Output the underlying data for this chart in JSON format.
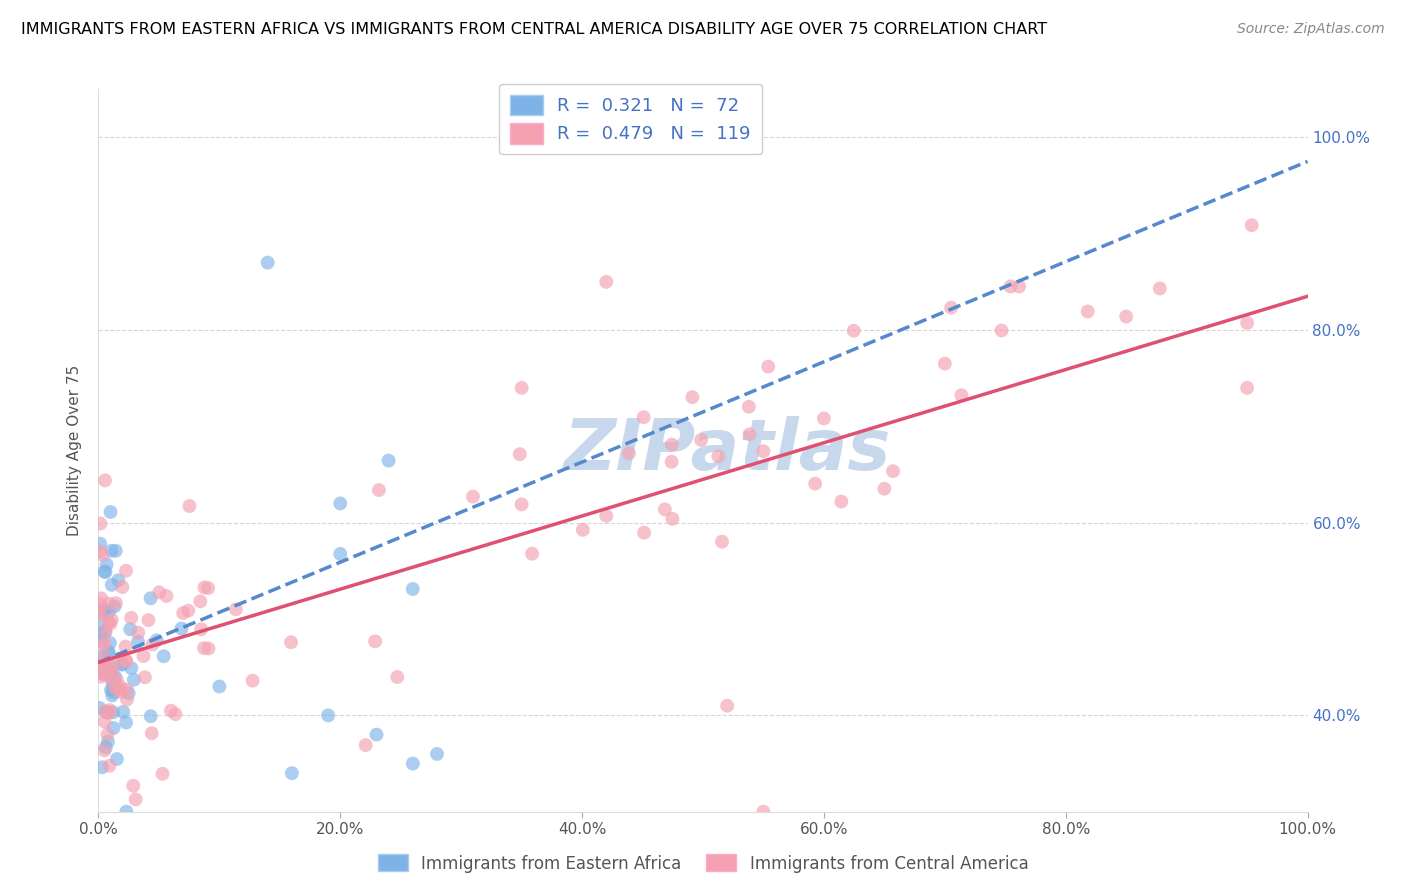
{
  "title": "IMMIGRANTS FROM EASTERN AFRICA VS IMMIGRANTS FROM CENTRAL AMERICA DISABILITY AGE OVER 75 CORRELATION CHART",
  "source": "Source: ZipAtlas.com",
  "ylabel": "Disability Age Over 75",
  "xlim": [
    0.0,
    1.0
  ],
  "ylim": [
    0.3,
    1.05
  ],
  "xtick_positions": [
    0.0,
    0.2,
    0.4,
    0.6,
    0.8,
    1.0
  ],
  "xtick_labels": [
    "0.0%",
    "20.0%",
    "40.0%",
    "60.0%",
    "80.0%",
    "100.0%"
  ],
  "ytick_positions": [
    0.4,
    0.6,
    0.8,
    1.0
  ],
  "ytick_labels": [
    "40.0%",
    "60.0%",
    "80.0%",
    "100.0%"
  ],
  "r_blue": 0.321,
  "n_blue": 72,
  "r_pink": 0.479,
  "n_pink": 119,
  "blue_color": "#7EB3E8",
  "pink_color": "#F4A0B0",
  "trend_blue_color": "#5588CC",
  "trend_pink_color": "#E05070",
  "watermark": "ZIPatlas",
  "watermark_color": "#C8D8EC",
  "legend_text_color": "#4472C4",
  "axis_label_color": "#555555",
  "right_tick_color": "#4472C4",
  "bottom_label_color": "#555555",
  "blue_trend_intercept": 0.455,
  "blue_trend_slope": 0.52,
  "pink_trend_intercept": 0.455,
  "pink_trend_slope": 0.38,
  "scatter_marker_size": 100,
  "scatter_alpha": 0.65
}
